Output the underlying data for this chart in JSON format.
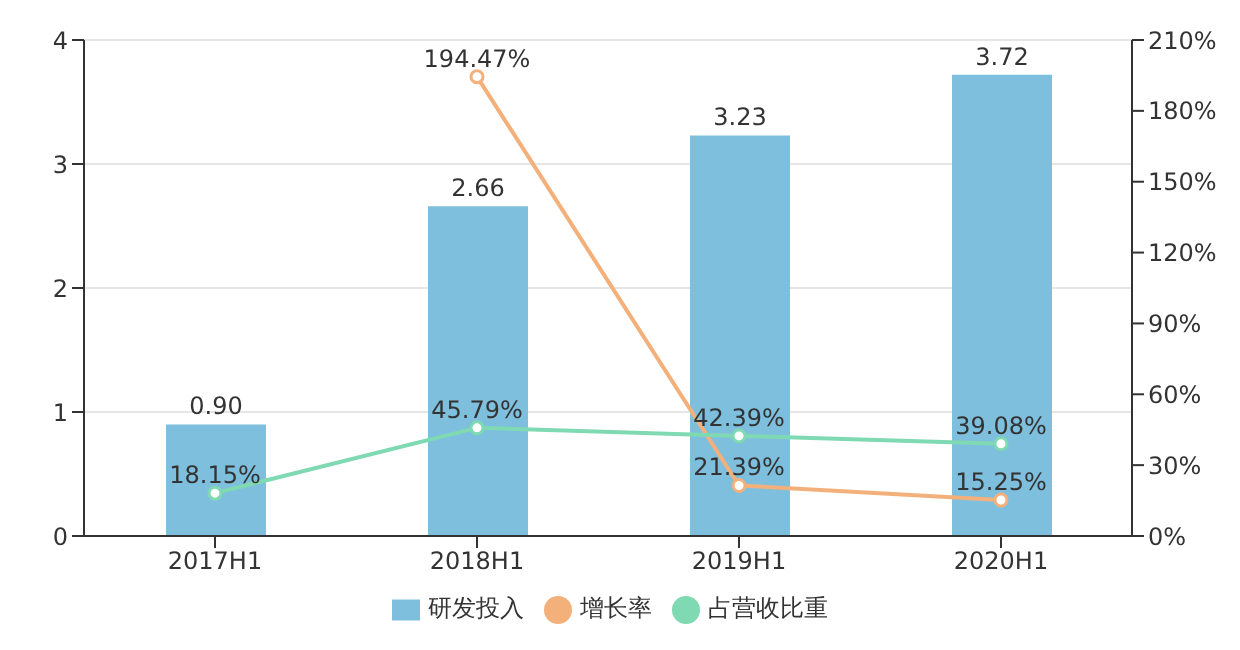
{
  "chart_data": {
    "type": "bar",
    "categories": [
      "2017H1",
      "2018H1",
      "2019H1",
      "2020H1"
    ],
    "series": [
      {
        "name": "研发投入",
        "color": "#7dbfdd",
        "values": [
          0.9,
          2.66,
          3.23,
          3.72
        ],
        "value_labels": [
          "0.90",
          "2.66",
          "3.23",
          "3.72"
        ]
      },
      {
        "name": "增长率",
        "type": "line",
        "axis": "y2",
        "color": "#f4b07a",
        "values": [
          null,
          194.47,
          21.39,
          15.25
        ],
        "value_labels": [
          null,
          "194.47%",
          "21.39%",
          "15.25%"
        ]
      },
      {
        "name": "占营收比重",
        "type": "line",
        "axis": "y2",
        "color": "#7fd9b3",
        "values": [
          18.15,
          45.79,
          42.39,
          39.08
        ],
        "value_labels": [
          "18.15%",
          "45.79%",
          "42.39%",
          "39.08%"
        ]
      }
    ],
    "ylim": [
      0,
      4
    ],
    "yticks": [
      0,
      1,
      2,
      3,
      4
    ],
    "y2lim": [
      0,
      210
    ],
    "y2ticks": [
      {
        "value": 0,
        "label": "0%"
      },
      {
        "value": 30,
        "label": "30%"
      },
      {
        "value": 60,
        "label": "60%"
      },
      {
        "value": 90,
        "label": "90%"
      },
      {
        "value": 120,
        "label": "120%"
      },
      {
        "value": 150,
        "label": "150%"
      },
      {
        "value": 180,
        "label": "180%"
      },
      {
        "value": 210,
        "label": "210%"
      }
    ],
    "grid": "y",
    "legend": "bottom",
    "marker": "circle"
  }
}
